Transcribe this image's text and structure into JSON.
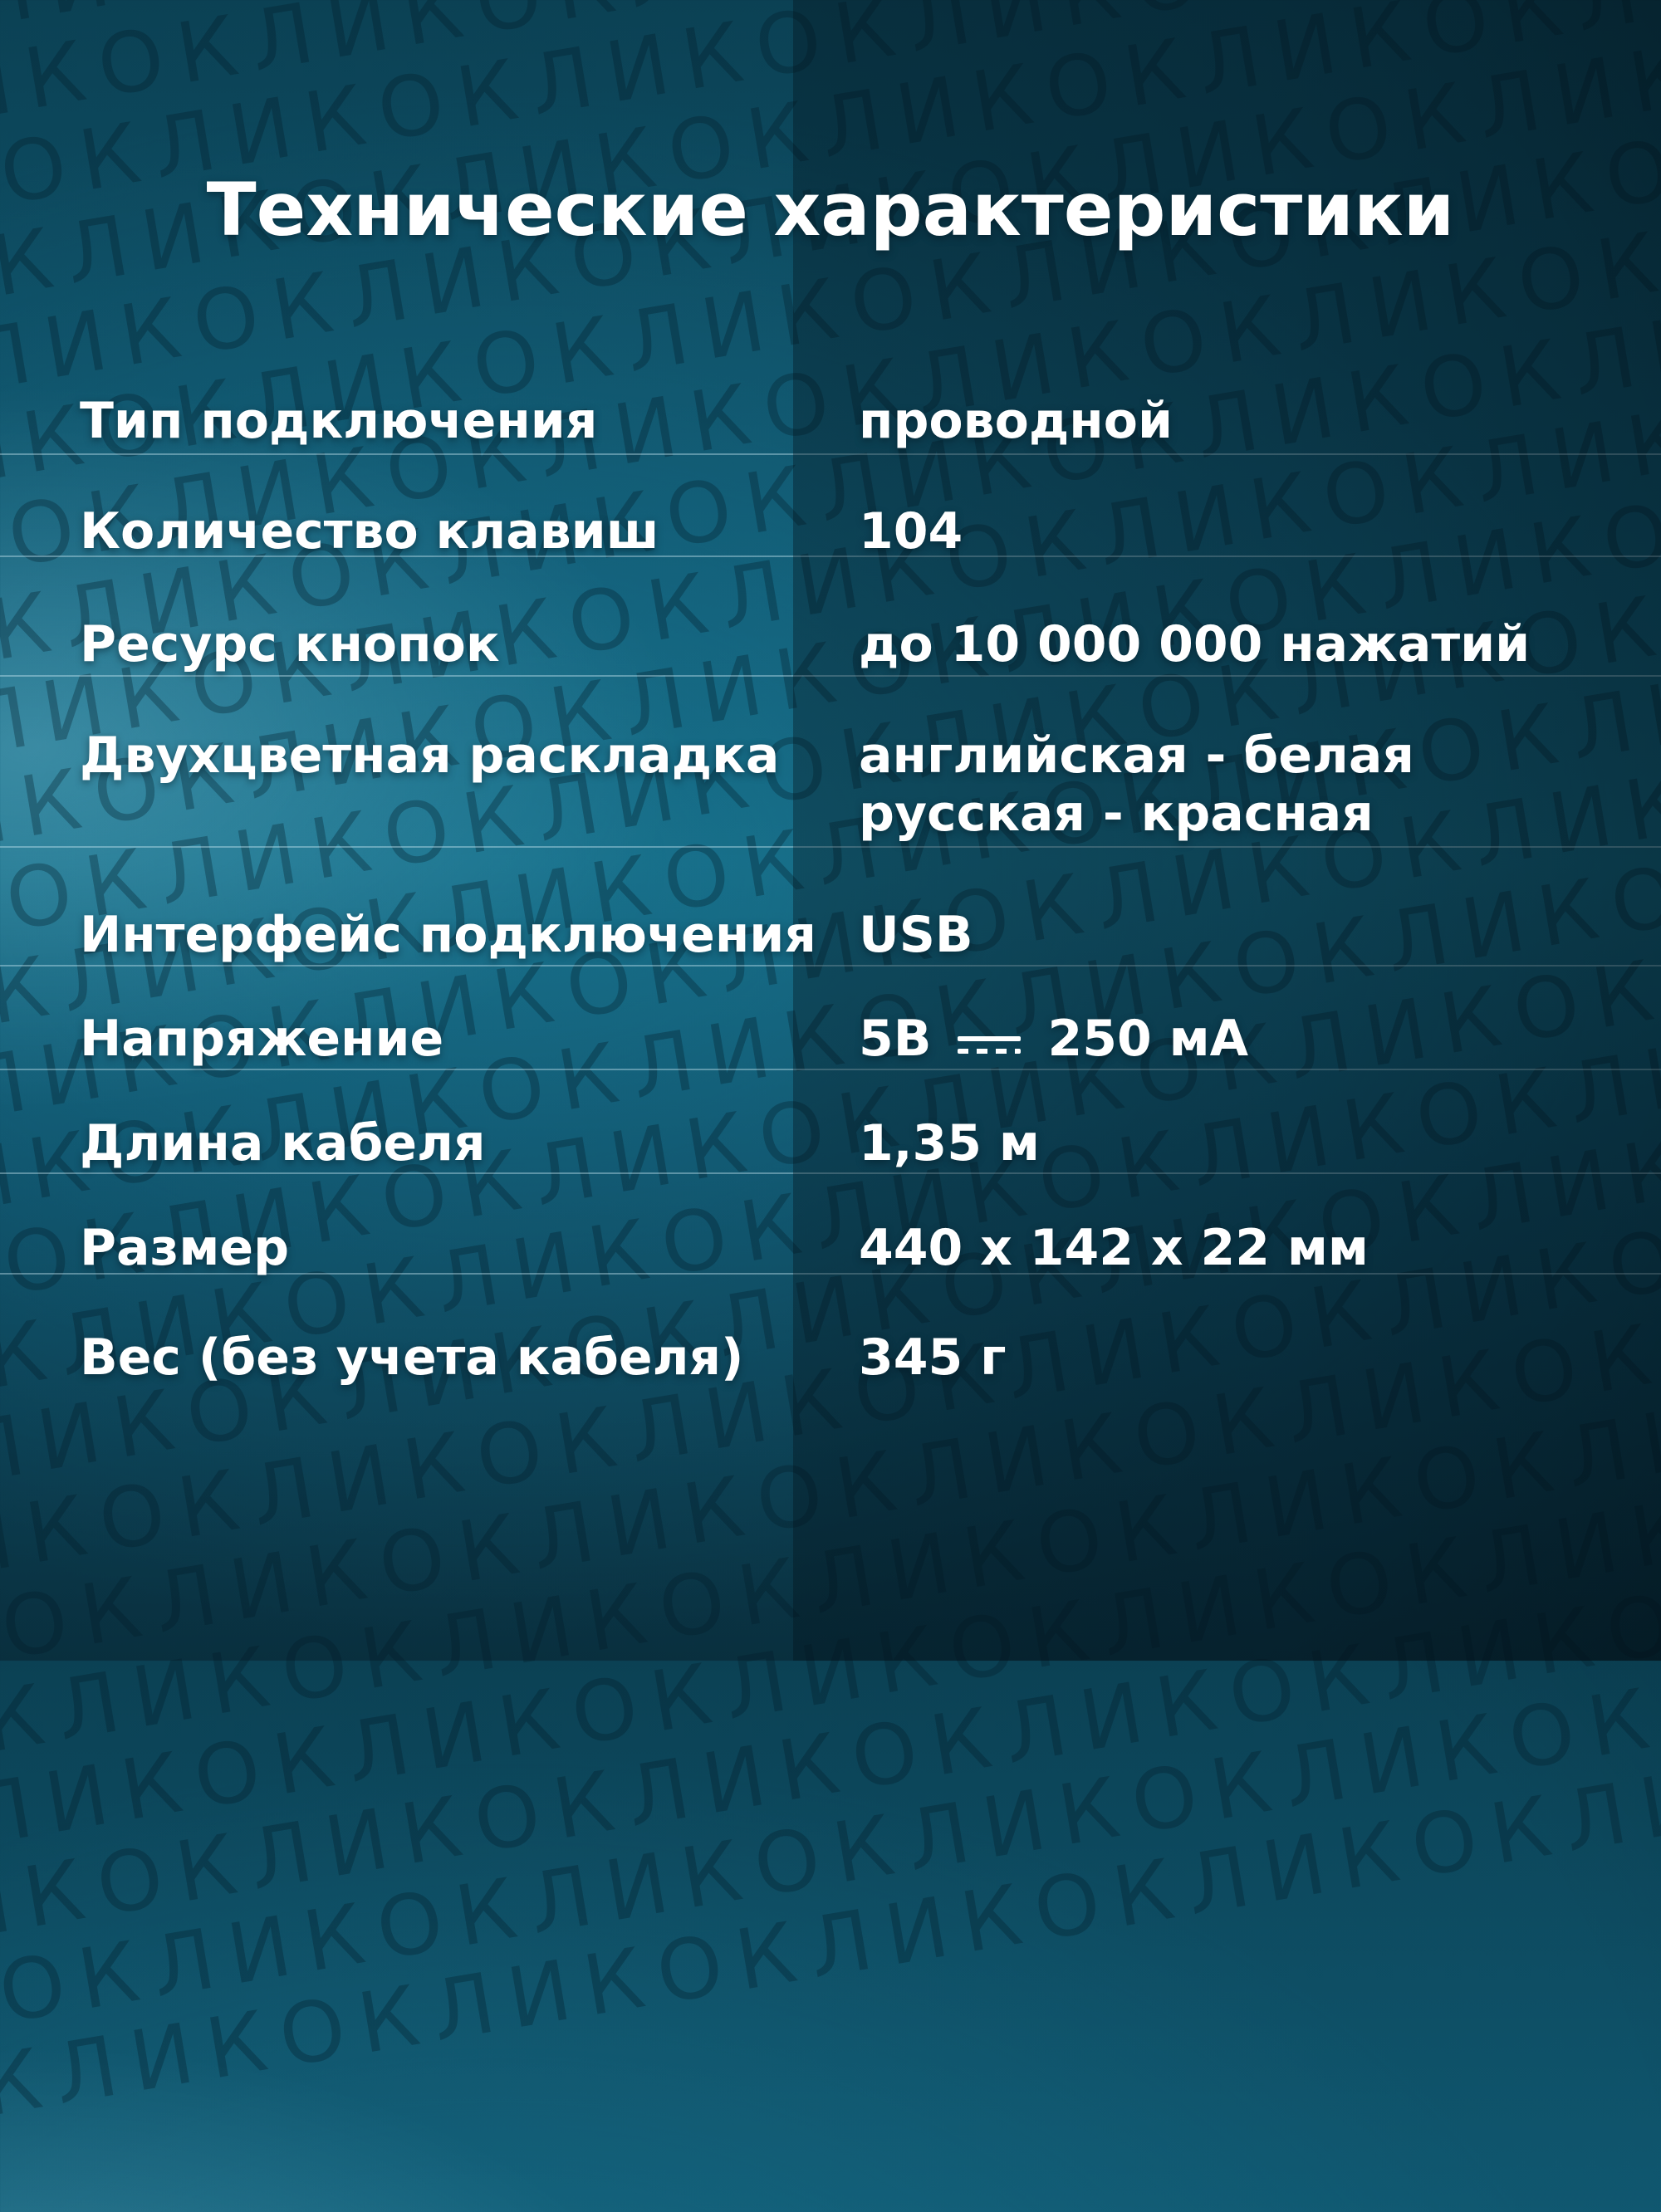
{
  "title": "Технические характеристики",
  "watermark": {
    "text": "ОКЛИК",
    "repeats": 9,
    "rows": 25
  },
  "colors": {
    "background_teal": "#13647d",
    "background_dark": "#092f3e",
    "right_half_shade": "rgba(2,14,22,0.45)",
    "text": "#ffffff",
    "separator": "rgba(205,235,245,0.40)",
    "watermark": "rgba(4,28,40,0.32)"
  },
  "specs": {
    "rows": [
      {
        "label": "Тип подключения",
        "value": "проводной"
      },
      {
        "label": "Количество клавиш",
        "value": "104"
      },
      {
        "label": "Ресурс кнопок",
        "value": "до 10 000 000 нажатий"
      },
      {
        "label": "Двухцветная раскладка",
        "value": "английская - белая\nрусская - красная"
      },
      {
        "label": "Интерфейс подключения",
        "value": "USB"
      },
      {
        "label": "Напряжение",
        "value_parts": {
          "voltage": "5В",
          "icon": "dc-current-icon",
          "current": "250 мА"
        }
      },
      {
        "label": "Длина кабеля",
        "value": "1,35 м"
      },
      {
        "label": "Размер",
        "value": "440 x 142 x 22 мм"
      },
      {
        "label": "Вес (без учета кабеля)",
        "value": "345 г"
      }
    ]
  }
}
